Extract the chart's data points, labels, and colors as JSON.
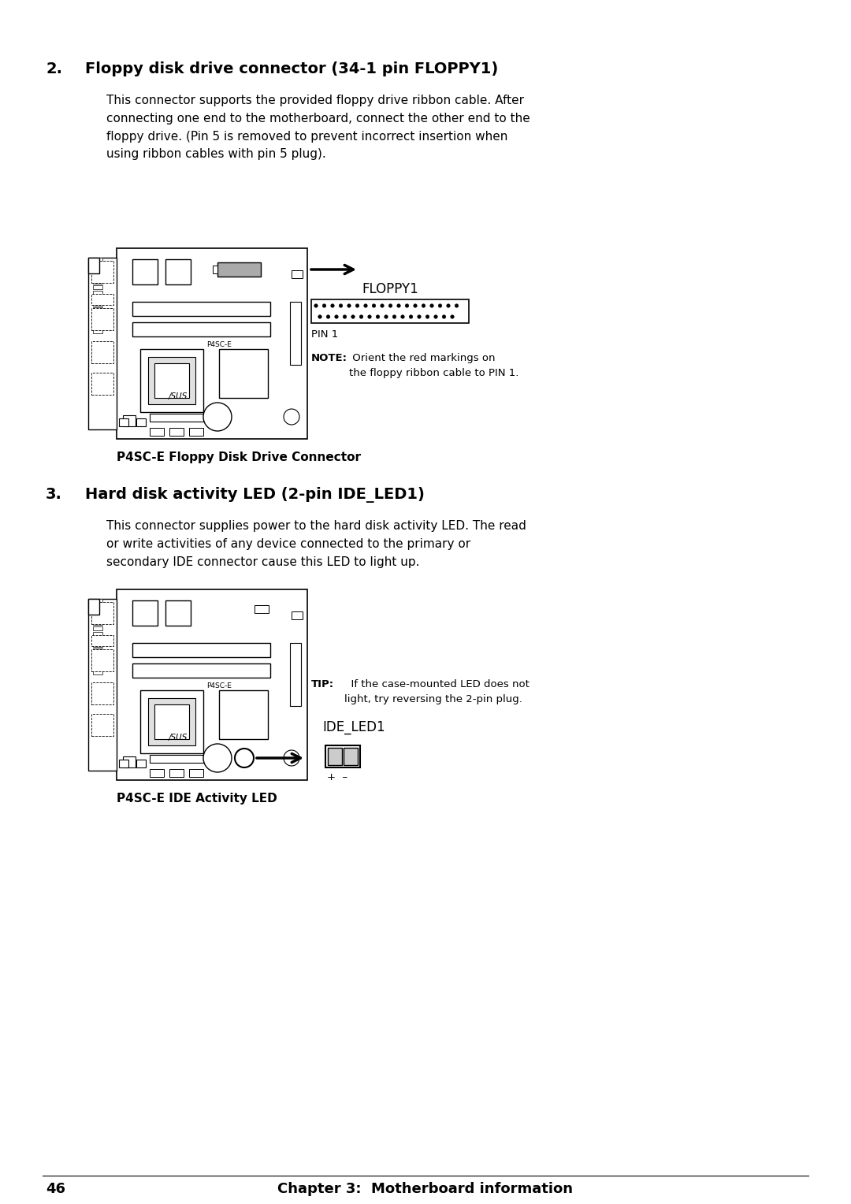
{
  "bg_color": "#ffffff",
  "page_number": "46",
  "footer_text": "Chapter 3:  Motherboard information",
  "section2_num": "2.",
  "section2_title": "Floppy disk drive connector (34-1 pin FLOPPY1)",
  "section2_body": "This connector supports the provided floppy drive ribbon cable. After\nconnecting one end to the motherboard, connect the other end to the\nfloppy drive. (Pin 5 is removed to prevent incorrect insertion when\nusing ribbon cables with pin 5 plug).",
  "floppy_label": "FLOPPY1",
  "floppy_pin_label": "PIN 1",
  "floppy_note_bold": "NOTE:",
  "floppy_note_text": " Orient the red markings on\nthe floppy ribbon cable to PIN 1.",
  "floppy_caption": "P4SC-E Floppy Disk Drive Connector",
  "section3_num": "3.",
  "section3_title": "Hard disk activity LED (2-pin IDE_LED1)",
  "section3_body": "This connector supplies power to the hard disk activity LED. The read\nor write activities of any device connected to the primary or\nsecondary IDE connector cause this LED to light up.",
  "ide_tip_bold": "TIP:",
  "ide_tip_text": "  If the case-mounted LED does not\nlight, try reversing the 2-pin plug.",
  "ide_label": "IDE_LED1",
  "ide_pins_label": "+  –",
  "ide_caption": "P4SC-E IDE Activity LED",
  "mb_label": "P4SC-E",
  "asus_label": "/SUS",
  "text_color": "#000000"
}
